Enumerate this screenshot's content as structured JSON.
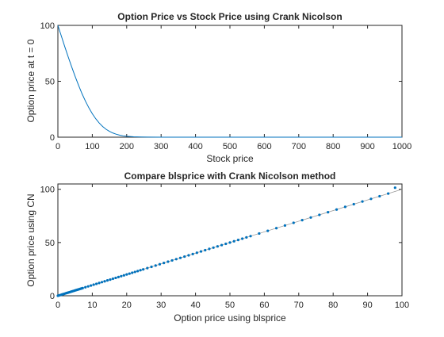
{
  "chart_data": [
    {
      "type": "line",
      "title": "Option Price vs Stock Price using Crank Nicolson",
      "xlabel": "Stock price",
      "ylabel": "Option price at t = 0",
      "xlim": [
        0,
        1000
      ],
      "ylim": [
        0,
        100
      ],
      "xticks": [
        0,
        100,
        200,
        300,
        400,
        500,
        600,
        700,
        800,
        900,
        1000
      ],
      "yticks": [
        0,
        50,
        100
      ],
      "grid": false,
      "series": [
        {
          "color": "#0072BD",
          "x": [
            0,
            10,
            20,
            30,
            40,
            50,
            60,
            70,
            80,
            90,
            100,
            110,
            120,
            130,
            140,
            150,
            160,
            170,
            180,
            190,
            200,
            220,
            240,
            260,
            300,
            400,
            500,
            600,
            700,
            800,
            900,
            1000
          ],
          "y": [
            100,
            90.5,
            81,
            71.8,
            63,
            54.5,
            46.5,
            39,
            32.3,
            26.3,
            21,
            16.5,
            12.7,
            9.6,
            7.1,
            5.2,
            3.7,
            2.6,
            1.8,
            1.2,
            0.8,
            0.35,
            0.15,
            0.06,
            0.01,
            0,
            0,
            0,
            0,
            0,
            0,
            0
          ]
        }
      ]
    },
    {
      "type": "scatter",
      "title": "Compare blsprice with Crank Nicolson method",
      "xlabel": "Option price using blsprice",
      "ylabel": "Option price using CN",
      "xlim": [
        0,
        100
      ],
      "ylim": [
        0,
        105
      ],
      "xticks": [
        0,
        10,
        20,
        30,
        40,
        50,
        60,
        70,
        80,
        90,
        100
      ],
      "yticks": [
        0,
        50,
        100
      ],
      "grid": false,
      "reference_line": {
        "x": [
          0,
          100
        ],
        "y": [
          0,
          100
        ],
        "color": "#9a9a9a"
      },
      "series": [
        {
          "color": "#0072BD",
          "x": [
            0,
            0.3,
            0.6,
            0.9,
            1.2,
            1.5,
            1.8,
            2.1,
            2.4,
            2.7,
            3.0,
            3.3,
            3.6,
            3.9,
            4.2,
            4.5,
            4.8,
            5.1,
            5.4,
            5.7,
            6.0,
            6.3,
            6.6,
            6.9,
            7.2,
            8.0,
            8.8,
            9.6,
            10.4,
            11.2,
            12.0,
            12.8,
            13.6,
            14.4,
            15.2,
            16.0,
            16.8,
            17.6,
            18.4,
            19.2,
            20.0,
            20.8,
            21.6,
            22.4,
            23.2,
            24.0,
            24.8,
            26.0,
            27.2,
            28.4,
            29.6,
            30.8,
            32.0,
            33.2,
            34.4,
            35.6,
            36.8,
            38.0,
            39.2,
            40.4,
            41.6,
            42.8,
            44.0,
            45.2,
            46.4,
            47.6,
            48.8,
            50.0,
            51.2,
            52.4,
            53.6,
            54.8,
            56.0,
            58.5,
            61.0,
            63.5,
            66.0,
            68.5,
            71.0,
            73.5,
            76.0,
            78.5,
            81.0,
            83.5,
            86.0,
            88.5,
            91.0,
            93.5,
            96.0,
            98.0
          ],
          "y": [
            0,
            0.3,
            0.6,
            0.9,
            1.2,
            1.5,
            1.8,
            2.1,
            2.4,
            2.7,
            3.0,
            3.3,
            3.6,
            3.9,
            4.2,
            4.5,
            4.8,
            5.1,
            5.4,
            5.7,
            6.0,
            6.3,
            6.6,
            6.9,
            7.2,
            8.0,
            8.8,
            9.6,
            10.4,
            11.2,
            12.0,
            12.8,
            13.6,
            14.4,
            15.2,
            16.0,
            16.8,
            17.6,
            18.4,
            19.2,
            20.0,
            20.8,
            21.6,
            22.4,
            23.2,
            24.0,
            24.8,
            26.0,
            27.2,
            28.4,
            29.6,
            30.8,
            32.0,
            33.2,
            34.4,
            35.6,
            36.8,
            38.0,
            39.2,
            40.4,
            41.6,
            42.8,
            44.0,
            45.2,
            46.4,
            47.6,
            48.8,
            50.0,
            51.2,
            52.4,
            53.6,
            54.8,
            56.0,
            58.5,
            61.0,
            63.5,
            66.0,
            68.5,
            71.0,
            73.5,
            76.0,
            78.5,
            81.0,
            83.5,
            86.0,
            88.5,
            91.0,
            93.5,
            96.0,
            101.5
          ]
        }
      ]
    }
  ]
}
